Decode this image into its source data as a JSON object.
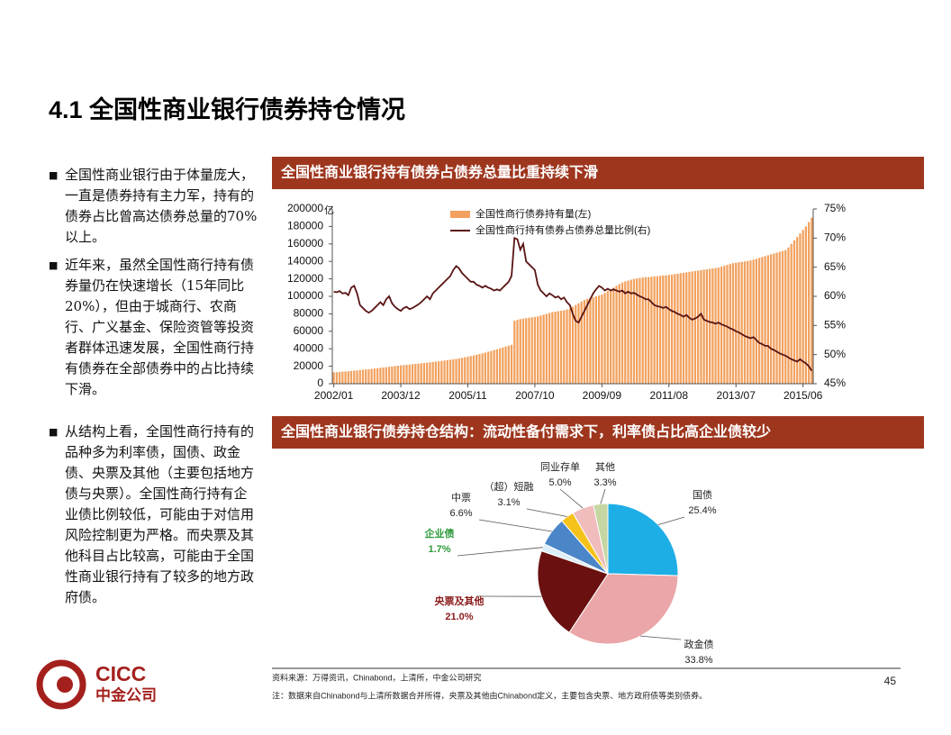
{
  "title": "4.1 全国性商业银行债券持仓情况",
  "bullets": [
    "全国性商业银行由于体量庞大，一直是债券持有主力军，持有的债券占比曾高达债券总量的70%以上。",
    "近年来，虽然全国性商行持有债券量仍在快速增长（15年同比20%），但由于城商行、农商行、广义基金、保险资管等投资者群体迅速发展，全国性商行持有债券在全部债券中的占比持续下滑。",
    "从结构上看，全国性商行持有的品种多为利率债，国债、政金债、央票及其他（主要包括地方债与央票）。全国性商行持有企业债比例较低，可能由于对信用风险控制更为严格。而央票及其他科目占比较高，可能由于全国性商业银行持有了较多的地方政府债。"
  ],
  "chart_data": [
    {
      "type": "combo",
      "title": "全国性商业银行持有债券占债券总量比重持续下滑",
      "y_label": "亿",
      "categories": [
        "2002/01",
        null,
        null,
        null,
        null,
        null,
        null,
        null,
        null,
        null,
        null,
        null,
        null,
        null,
        null,
        null,
        null,
        null,
        null,
        null,
        null,
        null,
        null,
        "2003/12",
        null,
        null,
        null,
        null,
        null,
        null,
        null,
        null,
        null,
        null,
        null,
        null,
        null,
        null,
        null,
        null,
        null,
        null,
        null,
        null,
        null,
        null,
        "2005/11",
        null,
        null,
        null,
        null,
        null,
        null,
        null,
        null,
        null,
        null,
        null,
        null,
        null,
        null,
        null,
        null,
        null,
        null,
        null,
        null,
        null,
        null,
        "2007/10",
        null,
        null,
        null,
        null,
        null,
        null,
        null,
        null,
        null,
        null,
        null,
        null,
        null,
        null,
        null,
        null,
        null,
        null,
        null,
        null,
        null,
        null,
        "2009/09",
        null,
        null,
        null,
        null,
        null,
        null,
        null,
        null,
        null,
        null,
        null,
        null,
        null,
        null,
        null,
        null,
        null,
        null,
        null,
        null,
        null,
        null,
        "2011/08",
        null,
        null,
        null,
        null,
        null,
        null,
        null,
        null,
        null,
        null,
        null,
        null,
        null,
        null,
        null,
        null,
        null,
        null,
        null,
        null,
        null,
        null,
        "2013/07",
        null,
        null,
        null,
        null,
        null,
        null,
        null,
        null,
        null,
        null,
        null,
        null,
        null,
        null,
        null,
        null,
        null,
        null,
        null,
        null,
        null,
        null,
        "2015/06",
        null,
        null,
        null
      ],
      "series": [
        {
          "name": "全国性商行债券持有量(左)",
          "type": "bar",
          "color": "#f2a15e",
          "values": [
            13000,
            13200,
            13500,
            13800,
            14000,
            14300,
            14600,
            15000,
            15300,
            15600,
            16000,
            16300,
            16600,
            17000,
            17400,
            17800,
            18200,
            18600,
            19000,
            19400,
            19800,
            20200,
            20600,
            21000,
            21300,
            21600,
            22000,
            22300,
            22700,
            23000,
            23400,
            23800,
            24100,
            24500,
            24900,
            25300,
            25700,
            26100,
            26600,
            27000,
            27500,
            28000,
            28500,
            29100,
            29700,
            30300,
            31000,
            31700,
            32400,
            33200,
            34000,
            34800,
            35700,
            36600,
            37500,
            38500,
            39500,
            40500,
            41500,
            42500,
            43500,
            44500,
            72000,
            73000,
            74000,
            74500,
            75000,
            75500,
            76000,
            76500,
            77000,
            78000,
            79000,
            80000,
            81000,
            82000,
            82500,
            83000,
            83500,
            84000,
            85000,
            86000,
            88000,
            90000,
            92000,
            94000,
            96000,
            97000,
            98000,
            99000,
            100000,
            101000,
            102000,
            104000,
            106000,
            108000,
            110000,
            112000,
            114000,
            116000,
            117000,
            118000,
            119000,
            120000,
            120500,
            121000,
            121500,
            122000,
            122000,
            122500,
            123000,
            123000,
            123500,
            124000,
            124000,
            124500,
            125000,
            125500,
            126000,
            126500,
            127000,
            127500,
            128000,
            128500,
            129000,
            129500,
            130000,
            130500,
            131000,
            131500,
            132000,
            132500,
            133000,
            134000,
            135000,
            136000,
            137000,
            138000,
            138500,
            139000,
            139500,
            140000,
            140500,
            141000,
            142000,
            143000,
            144000,
            145000,
            146000,
            147000,
            148000,
            149000,
            150000,
            151000,
            152000,
            153000,
            156000,
            160000,
            164000,
            168000,
            172000,
            176000,
            180000,
            185000,
            190000
          ]
        },
        {
          "name": "全国性商行持有债券占债券总量比例(右)",
          "type": "line",
          "axis": "y2",
          "color": "#5a1414",
          "values": [
            60.8,
            60.7,
            60.9,
            60.5,
            60.6,
            60.2,
            61.5,
            61.8,
            60.5,
            58.5,
            58.0,
            57.5,
            57.2,
            57.5,
            58.0,
            58.5,
            59.0,
            58.5,
            59.5,
            60.0,
            58.8,
            58.2,
            57.8,
            57.5,
            58.0,
            58.2,
            57.8,
            58.0,
            58.3,
            58.6,
            59.0,
            59.5,
            60.0,
            59.5,
            60.5,
            61.0,
            61.5,
            62.0,
            62.5,
            63.0,
            63.5,
            64.5,
            65.2,
            64.8,
            64.0,
            63.5,
            63.0,
            62.5,
            62.5,
            62.0,
            61.8,
            61.5,
            61.8,
            61.5,
            61.3,
            61.0,
            61.2,
            61.0,
            61.5,
            62.0,
            62.5,
            63.5,
            70.0,
            69.8,
            68.0,
            69.0,
            66.0,
            65.5,
            65.0,
            64.5,
            62.0,
            61.0,
            60.5,
            60.0,
            60.5,
            60.2,
            59.8,
            60.0,
            59.5,
            59.8,
            59.0,
            58.5,
            57.0,
            55.8,
            55.5,
            56.5,
            57.5,
            58.5,
            59.5,
            60.5,
            61.2,
            61.8,
            61.5,
            61.0,
            61.3,
            61.0,
            61.2,
            61.0,
            60.8,
            61.0,
            60.5,
            60.8,
            60.5,
            60.6,
            60.3,
            60.0,
            59.8,
            59.5,
            59.5,
            59.0,
            58.5,
            58.3,
            58.2,
            58.0,
            58.2,
            57.8,
            57.5,
            57.3,
            57.0,
            56.8,
            56.5,
            56.8,
            56.3,
            56.0,
            56.2,
            56.5,
            57.0,
            56.0,
            55.8,
            55.6,
            55.5,
            55.3,
            55.5,
            55.2,
            55.0,
            54.8,
            54.5,
            54.3,
            54.0,
            53.8,
            53.5,
            53.2,
            53.0,
            52.8,
            53.0,
            52.5,
            52.0,
            51.8,
            51.5,
            51.5,
            51.0,
            50.8,
            50.5,
            50.2,
            50.0,
            49.8,
            49.5,
            49.2,
            49.0,
            48.8,
            49.2,
            48.8,
            48.5,
            48.0,
            47.2
          ]
        }
      ],
      "ylim": [
        0,
        200000
      ],
      "yticks": [
        0,
        20000,
        40000,
        60000,
        80000,
        100000,
        120000,
        140000,
        160000,
        180000,
        200000
      ],
      "y2lim": [
        45,
        75
      ],
      "y2ticks": [
        {
          "value": 45,
          "label": "45%"
        },
        {
          "value": 50,
          "label": "50%"
        },
        {
          "value": 55,
          "label": "55%"
        },
        {
          "value": 60,
          "label": "60%"
        },
        {
          "value": 65,
          "label": "65%"
        },
        {
          "value": 70,
          "label": "70%"
        },
        {
          "value": 75,
          "label": "75%"
        }
      ],
      "legend": "top"
    },
    {
      "type": "pie",
      "title": "全国性商业银行债券持仓结构：流动性备付需求下，利率债占比高企业债较少",
      "categories": [
        "国债",
        "政金债",
        "央票及其他",
        "企业债",
        "中票",
        "（超）短融",
        "同业存单",
        "其他"
      ],
      "values": [
        25.4,
        33.8,
        21.0,
        1.7,
        6.6,
        3.1,
        5.0,
        3.3
      ],
      "value_labels": [
        "25.4%",
        "33.8%",
        "21.0%",
        "1.7%",
        "6.6%",
        "3.1%",
        "5.0%",
        "3.3%"
      ],
      "colors": [
        "#1eaee6",
        "#eaa6a8",
        "#6a1010",
        "#dceef8",
        "#4a86c8",
        "#f5c21a",
        "#f0bcbc",
        "#c6d6a2"
      ],
      "label_colors": [
        "#222222",
        "#222222",
        "#8b1a1a",
        "#2e9a3a",
        "#222222",
        "#222222",
        "#222222",
        "#222222"
      ]
    }
  ],
  "source": "资料来源：万得资讯，Chinabond，上清所，中金公司研究",
  "note": "注：数据来自Chinabond与上清所数据合并所得，央票及其他由Chinabond定义，主要包含央票、地方政府债等类别债券。",
  "page_number": "45",
  "logo": {
    "en": "CICC",
    "cn": "中金公司"
  }
}
